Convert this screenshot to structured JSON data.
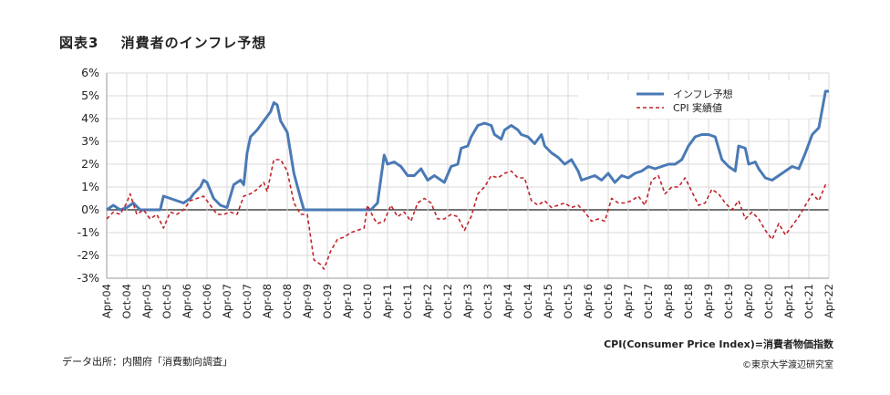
{
  "header": {
    "fig_label": "図表3",
    "title": "消費者のインフレ予想"
  },
  "notes": {
    "definition": "CPI(Consumer Price Index)=消費者物価指数",
    "source": "データ出所：内閣府「消費動向調査」",
    "copyright": "©東京大学渡辺研究室"
  },
  "colors": {
    "expectation": "#4a7ab5",
    "cpi": "#c0232a",
    "grid": "#d8d8d8",
    "zero": "#222222"
  },
  "chart_data": {
    "type": "line",
    "title": "消費者のインフレ予想",
    "xlabel": "",
    "ylabel": "",
    "x_range": [
      "2004-04",
      "2022-04"
    ],
    "ylim": [
      -3,
      6
    ],
    "yticks": [
      "6%",
      "5%",
      "4%",
      "3%",
      "2%",
      "1%",
      "0%",
      "-1%",
      "-2%",
      "-3%"
    ],
    "xticks": [
      "Apr-04",
      "Oct-04",
      "Apr-05",
      "Oct-05",
      "Apr-06",
      "Oct-06",
      "Apr-07",
      "Oct-07",
      "Apr-08",
      "Oct-08",
      "Apr-09",
      "Oct-09",
      "Apr-10",
      "Oct-10",
      "Apr-11",
      "Oct-11",
      "Apr-12",
      "Oct-12",
      "Apr-13",
      "Oct-13",
      "Apr-14",
      "Oct-14",
      "Apr-15",
      "Oct-15",
      "Apr-16",
      "Oct-16",
      "Apr-17",
      "Oct-17",
      "Apr-18",
      "Oct-18",
      "Apr-19",
      "Oct-19",
      "Apr-20",
      "Oct-20",
      "Apr-21",
      "Oct-21",
      "Apr-22"
    ],
    "grid": true,
    "legend_position": "top-right",
    "series": [
      {
        "name": "インフレ予想",
        "style": "solid",
        "points": [
          [
            "2004-04",
            0.0
          ],
          [
            "2004-06",
            0.2
          ],
          [
            "2004-08",
            0.0
          ],
          [
            "2004-10",
            0.1
          ],
          [
            "2004-12",
            0.3
          ],
          [
            "2005-02",
            0.0
          ],
          [
            "2005-06",
            0.0
          ],
          [
            "2005-08",
            0.0
          ],
          [
            "2005-09",
            0.6
          ],
          [
            "2005-11",
            0.5
          ],
          [
            "2006-01",
            0.4
          ],
          [
            "2006-03",
            0.3
          ],
          [
            "2006-05",
            0.5
          ],
          [
            "2006-06",
            0.7
          ],
          [
            "2006-08",
            1.0
          ],
          [
            "2006-09",
            1.3
          ],
          [
            "2006-10",
            1.2
          ],
          [
            "2006-12",
            0.5
          ],
          [
            "2007-02",
            0.2
          ],
          [
            "2007-04",
            0.1
          ],
          [
            "2007-06",
            1.1
          ],
          [
            "2007-08",
            1.3
          ],
          [
            "2007-09",
            1.1
          ],
          [
            "2007-10",
            2.5
          ],
          [
            "2007-11",
            3.2
          ],
          [
            "2008-01",
            3.5
          ],
          [
            "2008-03",
            3.9
          ],
          [
            "2008-05",
            4.3
          ],
          [
            "2008-06",
            4.7
          ],
          [
            "2008-07",
            4.6
          ],
          [
            "2008-08",
            3.9
          ],
          [
            "2008-10",
            3.4
          ],
          [
            "2008-12",
            1.6
          ],
          [
            "2009-02",
            0.5
          ],
          [
            "2009-03",
            0.0
          ],
          [
            "2009-06",
            0.0
          ],
          [
            "2010-06",
            0.0
          ],
          [
            "2010-11",
            0.0
          ],
          [
            "2011-01",
            0.3
          ],
          [
            "2011-03",
            2.4
          ],
          [
            "2011-04",
            2.0
          ],
          [
            "2011-06",
            2.1
          ],
          [
            "2011-08",
            1.9
          ],
          [
            "2011-10",
            1.5
          ],
          [
            "2011-12",
            1.5
          ],
          [
            "2012-02",
            1.8
          ],
          [
            "2012-04",
            1.3
          ],
          [
            "2012-06",
            1.5
          ],
          [
            "2012-07",
            1.4
          ],
          [
            "2012-09",
            1.2
          ],
          [
            "2012-11",
            1.9
          ],
          [
            "2013-01",
            2.0
          ],
          [
            "2013-02",
            2.7
          ],
          [
            "2013-04",
            2.8
          ],
          [
            "2013-05",
            3.2
          ],
          [
            "2013-07",
            3.7
          ],
          [
            "2013-09",
            3.8
          ],
          [
            "2013-11",
            3.7
          ],
          [
            "2013-12",
            3.3
          ],
          [
            "2014-02",
            3.1
          ],
          [
            "2014-03",
            3.5
          ],
          [
            "2014-05",
            3.7
          ],
          [
            "2014-07",
            3.5
          ],
          [
            "2014-08",
            3.3
          ],
          [
            "2014-10",
            3.2
          ],
          [
            "2014-12",
            2.9
          ],
          [
            "2015-02",
            3.3
          ],
          [
            "2015-03",
            2.8
          ],
          [
            "2015-05",
            2.5
          ],
          [
            "2015-07",
            2.3
          ],
          [
            "2015-09",
            2.0
          ],
          [
            "2015-11",
            2.2
          ],
          [
            "2016-01",
            1.7
          ],
          [
            "2016-02",
            1.3
          ],
          [
            "2016-04",
            1.4
          ],
          [
            "2016-06",
            1.5
          ],
          [
            "2016-08",
            1.3
          ],
          [
            "2016-10",
            1.6
          ],
          [
            "2016-12",
            1.2
          ],
          [
            "2017-02",
            1.5
          ],
          [
            "2017-04",
            1.4
          ],
          [
            "2017-06",
            1.6
          ],
          [
            "2017-08",
            1.7
          ],
          [
            "2017-10",
            1.9
          ],
          [
            "2017-12",
            1.8
          ],
          [
            "2018-02",
            1.9
          ],
          [
            "2018-04",
            2.0
          ],
          [
            "2018-06",
            2.0
          ],
          [
            "2018-08",
            2.2
          ],
          [
            "2018-10",
            2.8
          ],
          [
            "2018-12",
            3.2
          ],
          [
            "2019-02",
            3.3
          ],
          [
            "2019-04",
            3.3
          ],
          [
            "2019-06",
            3.2
          ],
          [
            "2019-08",
            2.2
          ],
          [
            "2019-10",
            1.9
          ],
          [
            "2019-12",
            1.7
          ],
          [
            "2020-01",
            2.8
          ],
          [
            "2020-03",
            2.7
          ],
          [
            "2020-04",
            2.0
          ],
          [
            "2020-06",
            2.1
          ],
          [
            "2020-07",
            1.8
          ],
          [
            "2020-09",
            1.4
          ],
          [
            "2020-11",
            1.3
          ],
          [
            "2021-01",
            1.5
          ],
          [
            "2021-03",
            1.7
          ],
          [
            "2021-05",
            1.9
          ],
          [
            "2021-07",
            1.8
          ],
          [
            "2021-09",
            2.5
          ],
          [
            "2021-11",
            3.3
          ],
          [
            "2022-01",
            3.6
          ],
          [
            "2022-03",
            5.2
          ],
          [
            "2022-04",
            5.2
          ]
        ]
      },
      {
        "name": "CPI 実績値",
        "style": "dashed",
        "points": [
          [
            "2004-04",
            -0.4
          ],
          [
            "2004-06",
            -0.1
          ],
          [
            "2004-08",
            -0.2
          ],
          [
            "2004-10",
            0.3
          ],
          [
            "2004-11",
            0.7
          ],
          [
            "2005-01",
            -0.2
          ],
          [
            "2005-03",
            0.0
          ],
          [
            "2005-05",
            -0.4
          ],
          [
            "2005-07",
            -0.2
          ],
          [
            "2005-09",
            -0.8
          ],
          [
            "2005-11",
            -0.1
          ],
          [
            "2006-01",
            -0.2
          ],
          [
            "2006-03",
            0.0
          ],
          [
            "2006-05",
            0.4
          ],
          [
            "2006-07",
            0.5
          ],
          [
            "2006-09",
            0.6
          ],
          [
            "2006-11",
            0.2
          ],
          [
            "2007-01",
            -0.2
          ],
          [
            "2007-03",
            -0.2
          ],
          [
            "2007-05",
            -0.1
          ],
          [
            "2007-07",
            -0.2
          ],
          [
            "2007-09",
            0.6
          ],
          [
            "2007-11",
            0.7
          ],
          [
            "2008-01",
            0.9
          ],
          [
            "2008-03",
            1.2
          ],
          [
            "2008-04",
            0.8
          ],
          [
            "2008-06",
            2.2
          ],
          [
            "2008-08",
            2.2
          ],
          [
            "2008-10",
            1.7
          ],
          [
            "2008-12",
            0.3
          ],
          [
            "2009-02",
            -0.2
          ],
          [
            "2009-04",
            -0.2
          ],
          [
            "2009-06",
            -2.2
          ],
          [
            "2009-08",
            -2.4
          ],
          [
            "2009-09",
            -2.6
          ],
          [
            "2009-11",
            -1.8
          ],
          [
            "2010-01",
            -1.3
          ],
          [
            "2010-03",
            -1.2
          ],
          [
            "2010-05",
            -1.0
          ],
          [
            "2010-07",
            -0.9
          ],
          [
            "2010-09",
            -0.8
          ],
          [
            "2010-10",
            0.2
          ],
          [
            "2010-12",
            -0.4
          ],
          [
            "2011-01",
            -0.6
          ],
          [
            "2011-03",
            -0.5
          ],
          [
            "2011-05",
            0.2
          ],
          [
            "2011-07",
            -0.3
          ],
          [
            "2011-09",
            -0.1
          ],
          [
            "2011-11",
            -0.5
          ],
          [
            "2012-01",
            0.3
          ],
          [
            "2012-03",
            0.5
          ],
          [
            "2012-05",
            0.3
          ],
          [
            "2012-07",
            -0.4
          ],
          [
            "2012-09",
            -0.4
          ],
          [
            "2012-11",
            -0.2
          ],
          [
            "2013-01",
            -0.3
          ],
          [
            "2013-03",
            -0.9
          ],
          [
            "2013-05",
            -0.3
          ],
          [
            "2013-07",
            0.7
          ],
          [
            "2013-09",
            1.0
          ],
          [
            "2013-11",
            1.5
          ],
          [
            "2014-01",
            1.4
          ],
          [
            "2014-03",
            1.6
          ],
          [
            "2014-05",
            1.7
          ],
          [
            "2014-07",
            1.4
          ],
          [
            "2014-09",
            1.4
          ],
          [
            "2014-11",
            0.4
          ],
          [
            "2015-01",
            0.2
          ],
          [
            "2015-03",
            0.4
          ],
          [
            "2015-05",
            0.1
          ],
          [
            "2015-07",
            0.2
          ],
          [
            "2015-09",
            0.3
          ],
          [
            "2015-11",
            0.1
          ],
          [
            "2016-01",
            0.2
          ],
          [
            "2016-03",
            -0.1
          ],
          [
            "2016-05",
            -0.5
          ],
          [
            "2016-07",
            -0.4
          ],
          [
            "2016-09",
            -0.5
          ],
          [
            "2016-11",
            0.5
          ],
          [
            "2017-01",
            0.3
          ],
          [
            "2017-03",
            0.3
          ],
          [
            "2017-05",
            0.4
          ],
          [
            "2017-07",
            0.6
          ],
          [
            "2017-09",
            0.2
          ],
          [
            "2017-11",
            1.3
          ],
          [
            "2018-01",
            1.5
          ],
          [
            "2018-03",
            0.7
          ],
          [
            "2018-05",
            1.0
          ],
          [
            "2018-07",
            1.0
          ],
          [
            "2018-09",
            1.4
          ],
          [
            "2018-11",
            0.8
          ],
          [
            "2019-01",
            0.2
          ],
          [
            "2019-03",
            0.3
          ],
          [
            "2019-05",
            0.9
          ],
          [
            "2019-07",
            0.7
          ],
          [
            "2019-09",
            0.3
          ],
          [
            "2019-11",
            0.0
          ],
          [
            "2020-01",
            0.4
          ],
          [
            "2020-03",
            -0.4
          ],
          [
            "2020-05",
            -0.1
          ],
          [
            "2020-07",
            -0.4
          ],
          [
            "2020-09",
            -0.9
          ],
          [
            "2020-11",
            -1.3
          ],
          [
            "2021-01",
            -0.6
          ],
          [
            "2021-03",
            -1.1
          ],
          [
            "2021-05",
            -0.7
          ],
          [
            "2021-07",
            -0.3
          ],
          [
            "2021-09",
            0.2
          ],
          [
            "2021-11",
            0.7
          ],
          [
            "2022-01",
            0.4
          ],
          [
            "2022-03",
            1.1
          ],
          [
            "2022-04",
            1.1
          ]
        ]
      }
    ]
  }
}
